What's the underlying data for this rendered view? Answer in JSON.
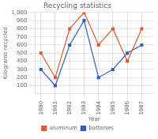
{
  "chart_data": {
    "type": "line",
    "title": "Recycling statistics",
    "x_label": "Year",
    "y_label": "Kilograms recycled",
    "x": [
      1980,
      1981,
      1982,
      1983,
      1984,
      1985,
      1986,
      1987
    ],
    "series": [
      {
        "name": "aluminum",
        "color": "#e05a2b",
        "marker": "square",
        "values": [
          500,
          200,
          800,
          1000,
          600,
          800,
          400,
          800
        ]
      },
      {
        "name": "batteries",
        "color": "#2e5fbe",
        "marker": "square",
        "values": [
          300,
          100,
          600,
          900,
          200,
          300,
          500,
          600
        ]
      }
    ],
    "xlim": [
      1979.6,
      1987.8
    ],
    "xticks": [
      1980,
      1981,
      1982,
      1983,
      1984,
      1985,
      1986,
      1987
    ],
    "ylim": [
      0,
      1000
    ],
    "yticks": [
      100,
      200,
      300,
      400,
      500,
      600,
      700,
      800,
      900,
      {
        "value": 1000,
        "label": "1,000"
      }
    ],
    "grid": true,
    "legend": "bottom"
  }
}
